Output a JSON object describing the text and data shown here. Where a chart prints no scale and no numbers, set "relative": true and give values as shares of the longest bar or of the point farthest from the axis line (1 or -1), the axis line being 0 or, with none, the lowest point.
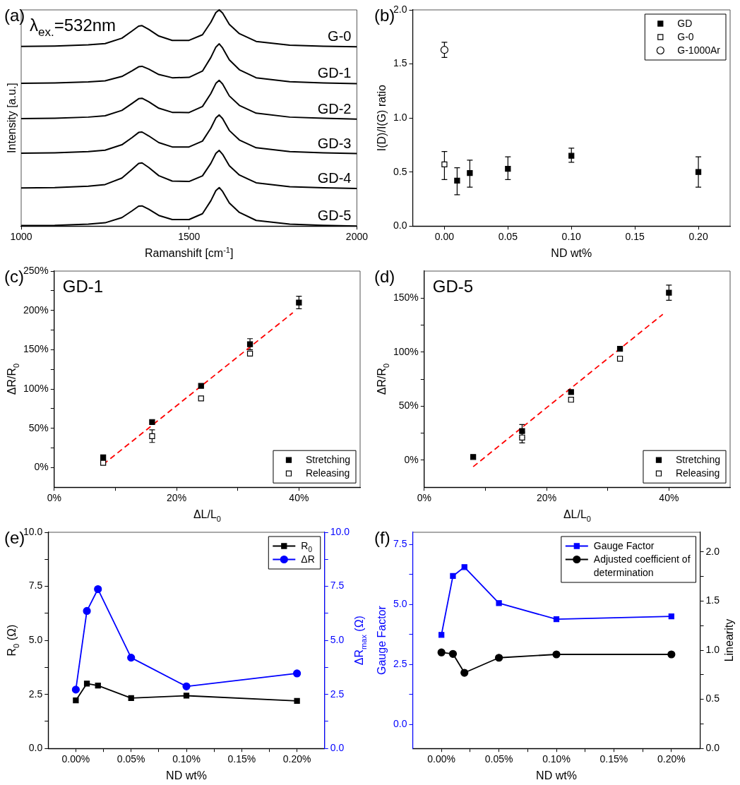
{
  "chart_data": [
    {
      "type": "line",
      "title": "(a)",
      "xlabel": "Ramanshift [cm$^{-1}$]",
      "ylabel": "Intensity [a.u.]",
      "relative": true,
      "legend": false,
      "marker": "none",
      "annotations": [
        "λ$_{ex.}$=532nm"
      ],
      "xlim": [
        1000,
        2000
      ],
      "xticks": [
        1000,
        1500,
        2000
      ],
      "x": [
        1000,
        1100,
        1200,
        1250,
        1300,
        1330,
        1350,
        1360,
        1380,
        1410,
        1450,
        1500,
        1540,
        1565,
        1580,
        1590,
        1600,
        1620,
        1650,
        1700,
        1800,
        1900,
        2000
      ],
      "series": [
        {
          "name": "G-0",
          "color": "#000000",
          "values": [
            0.831,
            0.833,
            0.838,
            0.844,
            0.869,
            0.902,
            0.925,
            0.927,
            0.91,
            0.879,
            0.859,
            0.859,
            0.885,
            0.943,
            0.988,
            1.0,
            0.985,
            0.933,
            0.89,
            0.854,
            0.837,
            0.832,
            0.829
          ]
        },
        {
          "name": "GD-1",
          "color": "#000000",
          "values": [
            0.66,
            0.662,
            0.667,
            0.672,
            0.692,
            0.718,
            0.737,
            0.739,
            0.726,
            0.701,
            0.686,
            0.688,
            0.717,
            0.78,
            0.828,
            0.843,
            0.824,
            0.769,
            0.723,
            0.686,
            0.668,
            0.662,
            0.659
          ]
        },
        {
          "name": "GD-2",
          "color": "#000000",
          "values": [
            0.497,
            0.499,
            0.504,
            0.51,
            0.535,
            0.567,
            0.589,
            0.591,
            0.575,
            0.545,
            0.526,
            0.525,
            0.553,
            0.613,
            0.66,
            0.674,
            0.657,
            0.602,
            0.558,
            0.522,
            0.504,
            0.499,
            0.495
          ]
        },
        {
          "name": "GD-3",
          "color": "#000000",
          "values": [
            0.337,
            0.339,
            0.344,
            0.351,
            0.376,
            0.409,
            0.433,
            0.435,
            0.417,
            0.386,
            0.366,
            0.366,
            0.393,
            0.453,
            0.5,
            0.514,
            0.497,
            0.442,
            0.398,
            0.362,
            0.344,
            0.339,
            0.335
          ]
        },
        {
          "name": "GD-4",
          "color": "#000000",
          "values": [
            0.176,
            0.178,
            0.184,
            0.192,
            0.222,
            0.262,
            0.29,
            0.292,
            0.271,
            0.233,
            0.208,
            0.206,
            0.232,
            0.29,
            0.336,
            0.35,
            0.332,
            0.279,
            0.236,
            0.2,
            0.182,
            0.177,
            0.174
          ]
        },
        {
          "name": "GD-5",
          "color": "#000000",
          "values": [
            0.002,
            0.003,
            0.009,
            0.015,
            0.039,
            0.07,
            0.092,
            0.093,
            0.078,
            0.049,
            0.03,
            0.03,
            0.057,
            0.117,
            0.164,
            0.178,
            0.16,
            0.107,
            0.063,
            0.026,
            0.009,
            0.003,
            0.0
          ]
        }
      ]
    },
    {
      "type": "scatter",
      "title": "(b)",
      "xlabel": "ND wt%",
      "ylabel": "I(D)/I(G) ratio",
      "legend": "top right",
      "xlim": [
        -0.025,
        0.225
      ],
      "xticks": [
        {
          "value": 0,
          "label": "0.00"
        },
        {
          "value": 0.05,
          "label": "0.05"
        },
        {
          "value": 0.1,
          "label": "0.10"
        },
        {
          "value": 0.15,
          "label": "0.15"
        },
        {
          "value": 0.2,
          "label": "0.20"
        }
      ],
      "ylim": [
        0,
        2
      ],
      "yticks": [
        {
          "value": 0,
          "label": "0.0"
        },
        0.5,
        {
          "value": 1,
          "label": "1.0"
        },
        1.5,
        {
          "value": 2,
          "label": "2.0"
        }
      ],
      "series": [
        {
          "name": "GD",
          "color": "#000000",
          "marker": "square",
          "x": [
            0.01,
            0.02,
            0.05,
            0.1,
            0.2
          ],
          "values": [
            0.42,
            0.49,
            0.53,
            0.65,
            0.5
          ],
          "errors": [
            [
              0.29,
              0.54
            ],
            [
              0.36,
              0.61
            ],
            [
              0.43,
              0.64
            ],
            [
              0.59,
              0.72
            ],
            [
              0.36,
              0.64
            ]
          ]
        },
        {
          "name": "G-0",
          "color": "#000000",
          "marker": "square",
          "x": [
            0
          ],
          "values": [
            0.57
          ],
          "errors": [
            [
              0.43,
              0.69
            ]
          ]
        },
        {
          "name": "G-1000Ar",
          "color": "#000000",
          "marker": "circle",
          "x": [
            0
          ],
          "values": [
            1.63
          ],
          "errors": [
            [
              1.56,
              1.7
            ]
          ]
        }
      ]
    },
    {
      "type": "scatter",
      "title": "(c)",
      "xlabel": "ΔL/L$_{0}$",
      "ylabel": "ΔR/R$_{0}$",
      "legend": "bottom right",
      "annotations": [
        "GD-1"
      ],
      "xlim": [
        0,
        50
      ],
      "xticks": [
        {
          "value": 0,
          "label": "0%"
        },
        {
          "value": 10,
          "label": null
        },
        {
          "value": 20,
          "label": "20%"
        },
        {
          "value": 30,
          "label": null
        },
        {
          "value": 40,
          "label": "40%"
        }
      ],
      "ylim": [
        -25,
        250
      ],
      "yticks": [
        {
          "value": 0,
          "label": "0%"
        },
        {
          "value": 25,
          "label": null
        },
        {
          "value": 50,
          "label": "50%"
        },
        {
          "value": 75,
          "label": null
        },
        {
          "value": 100,
          "label": "100%"
        },
        {
          "value": 125,
          "label": null
        },
        {
          "value": 150,
          "label": "150%"
        },
        {
          "value": 175,
          "label": null
        },
        {
          "value": 200,
          "label": "200%"
        },
        {
          "value": 225,
          "label": null
        },
        {
          "value": 250,
          "label": "250%"
        }
      ],
      "series": [
        {
          "name": "Stretching",
          "color": "#000000",
          "marker": "square",
          "x": [
            8,
            16,
            24,
            32,
            40
          ],
          "values": [
            13,
            58,
            104,
            157,
            210
          ],
          "errors": [
            null,
            null,
            null,
            7,
            8
          ]
        },
        {
          "name": "Releasing",
          "color": "#000000",
          "marker": "square",
          "x": [
            8,
            16,
            24,
            32
          ],
          "values": [
            6,
            40,
            88,
            145
          ],
          "errors": [
            null,
            8,
            null,
            null
          ]
        },
        {
          "type": "line",
          "color": "#ff0000",
          "marker": "none",
          "line_style": "dashed",
          "x": [
            8,
            39
          ],
          "values": [
            4,
            197
          ]
        }
      ]
    },
    {
      "type": "scatter",
      "title": "(d)",
      "xlabel": "ΔL/L$_{0}$",
      "ylabel": "ΔR/R$_{0}$",
      "legend": "bottom right",
      "annotations": [
        "GD-5"
      ],
      "xlim": [
        0,
        50
      ],
      "xticks": [
        {
          "value": 0,
          "label": "0%"
        },
        {
          "value": 10,
          "label": null
        },
        {
          "value": 20,
          "label": "20%"
        },
        {
          "value": 30,
          "label": null
        },
        {
          "value": 40,
          "label": "40%"
        }
      ],
      "ylim": [
        -25,
        175
      ],
      "yticks": [
        {
          "value": 0,
          "label": "0%"
        },
        {
          "value": 25,
          "label": null
        },
        {
          "value": 50,
          "label": "50%"
        },
        {
          "value": 75,
          "label": null
        },
        {
          "value": 100,
          "label": "100%"
        },
        {
          "value": 125,
          "label": null
        },
        {
          "value": 150,
          "label": "150%"
        }
      ],
      "series": [
        {
          "name": "Stretching",
          "color": "#000000",
          "marker": "square",
          "x": [
            8,
            16,
            24,
            32,
            40
          ],
          "values": [
            3,
            27,
            63,
            103,
            155
          ],
          "errors": [
            null,
            6,
            null,
            null,
            7
          ]
        },
        {
          "name": "Releasing",
          "color": "#000000",
          "marker": "square",
          "x": [
            16,
            24,
            32
          ],
          "values": [
            21,
            56,
            94
          ],
          "errors": [
            5,
            null,
            null
          ]
        },
        {
          "type": "line",
          "color": "#ff0000",
          "marker": "none",
          "line_style": "dashed",
          "x": [
            8,
            39
          ],
          "values": [
            -6,
            135
          ]
        }
      ]
    },
    {
      "type": "line",
      "title": "(e)",
      "xlabel": "ND wt%",
      "ylabel": "R$_{0}$ (Ω)",
      "y2label": "ΔR$_{max}$ (Ω)",
      "legend": "top right",
      "x": [
        0,
        0.01,
        0.02,
        0.05,
        0.1,
        0.2
      ],
      "xlim": [
        -0.025,
        0.225
      ],
      "xticks": [
        {
          "value": 0,
          "label": "0.00%"
        },
        {
          "value": 0.025,
          "label": null
        },
        {
          "value": 0.05,
          "label": "0.05%"
        },
        {
          "value": 0.075,
          "label": null
        },
        {
          "value": 0.1,
          "label": "0.10%"
        },
        {
          "value": 0.125,
          "label": null
        },
        {
          "value": 0.15,
          "label": "0.15%"
        },
        {
          "value": 0.175,
          "label": null
        },
        {
          "value": 0.2,
          "label": "0.20%"
        }
      ],
      "ylim": [
        0,
        10
      ],
      "yticks": [
        {
          "value": 0,
          "label": "0.0"
        },
        {
          "value": 1.25,
          "label": null
        },
        2.5,
        {
          "value": 3.75,
          "label": null
        },
        {
          "value": 5,
          "label": "5.0"
        },
        {
          "value": 6.25,
          "label": null
        },
        7.5,
        {
          "value": 8.75,
          "label": null
        },
        {
          "value": 10,
          "label": "10.0"
        }
      ],
      "y2lim": [
        0,
        10
      ],
      "y2ticks": [
        {
          "value": 0,
          "label": "0.0"
        },
        {
          "value": 1.25,
          "label": null
        },
        2.5,
        {
          "value": 3.75,
          "label": null
        },
        {
          "value": 5,
          "label": "5.0"
        },
        {
          "value": 6.25,
          "label": null
        },
        7.5,
        {
          "value": 8.75,
          "label": null
        },
        {
          "value": 10,
          "label": "10.0"
        }
      ],
      "series": [
        {
          "name": "R$_{0}$",
          "color": "#000000",
          "marker": "square",
          "values": [
            2.22,
            3.0,
            2.91,
            2.33,
            2.44,
            2.2
          ]
        },
        {
          "name": "ΔR",
          "color": "#0000ff",
          "marker": "circle",
          "axis": "y2",
          "values": [
            2.72,
            6.36,
            7.37,
            4.2,
            2.87,
            3.47
          ]
        }
      ]
    },
    {
      "type": "line",
      "title": "(f)",
      "xlabel": "ND wt%",
      "ylabel": "Gauge Factor",
      "y2label": "Linearity",
      "legend": "top right",
      "x": [
        0,
        0.01,
        0.02,
        0.05,
        0.1,
        0.2
      ],
      "xlim": [
        -0.025,
        0.225
      ],
      "xticks": [
        {
          "value": 0,
          "label": "0.00%"
        },
        {
          "value": 0.025,
          "label": null
        },
        {
          "value": 0.05,
          "label": "0.05%"
        },
        {
          "value": 0.075,
          "label": null
        },
        {
          "value": 0.1,
          "label": "0.10%"
        },
        {
          "value": 0.125,
          "label": null
        },
        {
          "value": 0.15,
          "label": "0.15%"
        },
        {
          "value": 0.175,
          "label": null
        },
        {
          "value": 0.2,
          "label": "0.20%"
        }
      ],
      "ylim": [
        -1,
        8
      ],
      "yticks": [
        {
          "value": 0,
          "label": "0.0"
        },
        {
          "value": 1.25,
          "label": null
        },
        2.5,
        {
          "value": 3.75,
          "label": null
        },
        {
          "value": 5,
          "label": "5.0"
        },
        {
          "value": 6.25,
          "label": null
        },
        7.5
      ],
      "y2lim": [
        0,
        2.2
      ],
      "y2ticks": [
        {
          "value": 0,
          "label": "0.0"
        },
        {
          "value": 0.25,
          "label": null
        },
        0.5,
        {
          "value": 0.75,
          "label": null
        },
        {
          "value": 1,
          "label": "1.0"
        },
        {
          "value": 1.25,
          "label": null
        },
        1.5,
        {
          "value": 1.75,
          "label": null
        },
        {
          "value": 2,
          "label": "2.0"
        }
      ],
      "series": [
        {
          "name": "Gauge Factor",
          "color": "#0000ff",
          "marker": "square",
          "values": [
            3.73,
            6.18,
            6.55,
            5.05,
            4.38,
            4.5
          ]
        },
        {
          "name": "Adjusted coefficient of determination",
          "color": "#000000",
          "marker": "circle",
          "axis": "y2",
          "values": [
            0.977,
            0.962,
            0.77,
            0.923,
            0.957,
            0.957
          ]
        }
      ]
    }
  ]
}
